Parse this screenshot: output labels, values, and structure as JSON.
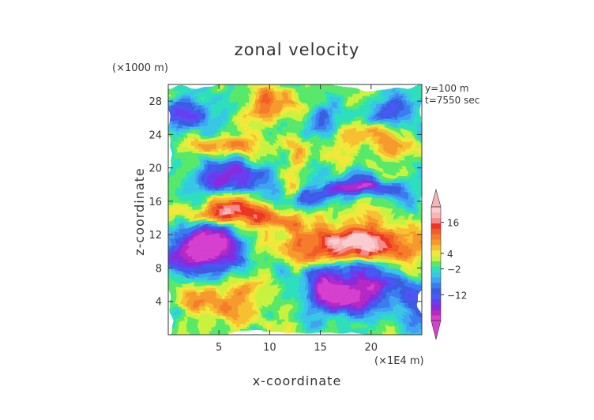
{
  "chart_data": {
    "type": "heatmap",
    "title": "zonal velocity",
    "xlabel": "x-coordinate",
    "ylabel": "z-coordinate",
    "x_unit": "(×1E4 m)",
    "y_unit": "(×1000 m)",
    "annotations": [
      "y=100 m",
      "t=7550 sec"
    ],
    "xlim": [
      0,
      25
    ],
    "ylim": [
      0,
      30
    ],
    "x_ticks": [
      5,
      10,
      15,
      20
    ],
    "y_ticks": [
      4,
      8,
      12,
      16,
      20,
      24,
      28
    ],
    "colorbar": {
      "tick_labels": [
        "16",
        "4",
        "−2",
        "−12"
      ],
      "tick_values": [
        16,
        4,
        -2,
        -12
      ],
      "range": [
        -22,
        22
      ],
      "extend": "both",
      "colors": [
        "#d63fcf",
        "#b529c4",
        "#8a2ad8",
        "#6a3cf0",
        "#4a58f5",
        "#3a5de0",
        "#3a7bf0",
        "#3fa3f2",
        "#37c7e6",
        "#2edfbd",
        "#58e86a",
        "#c9f23f",
        "#f2e83a",
        "#f7c032",
        "#f79a2e",
        "#f47c2a",
        "#f25c28",
        "#ee3525",
        "#f58a8a",
        "#f6b6b6",
        "#f9cdd0"
      ]
    }
  }
}
